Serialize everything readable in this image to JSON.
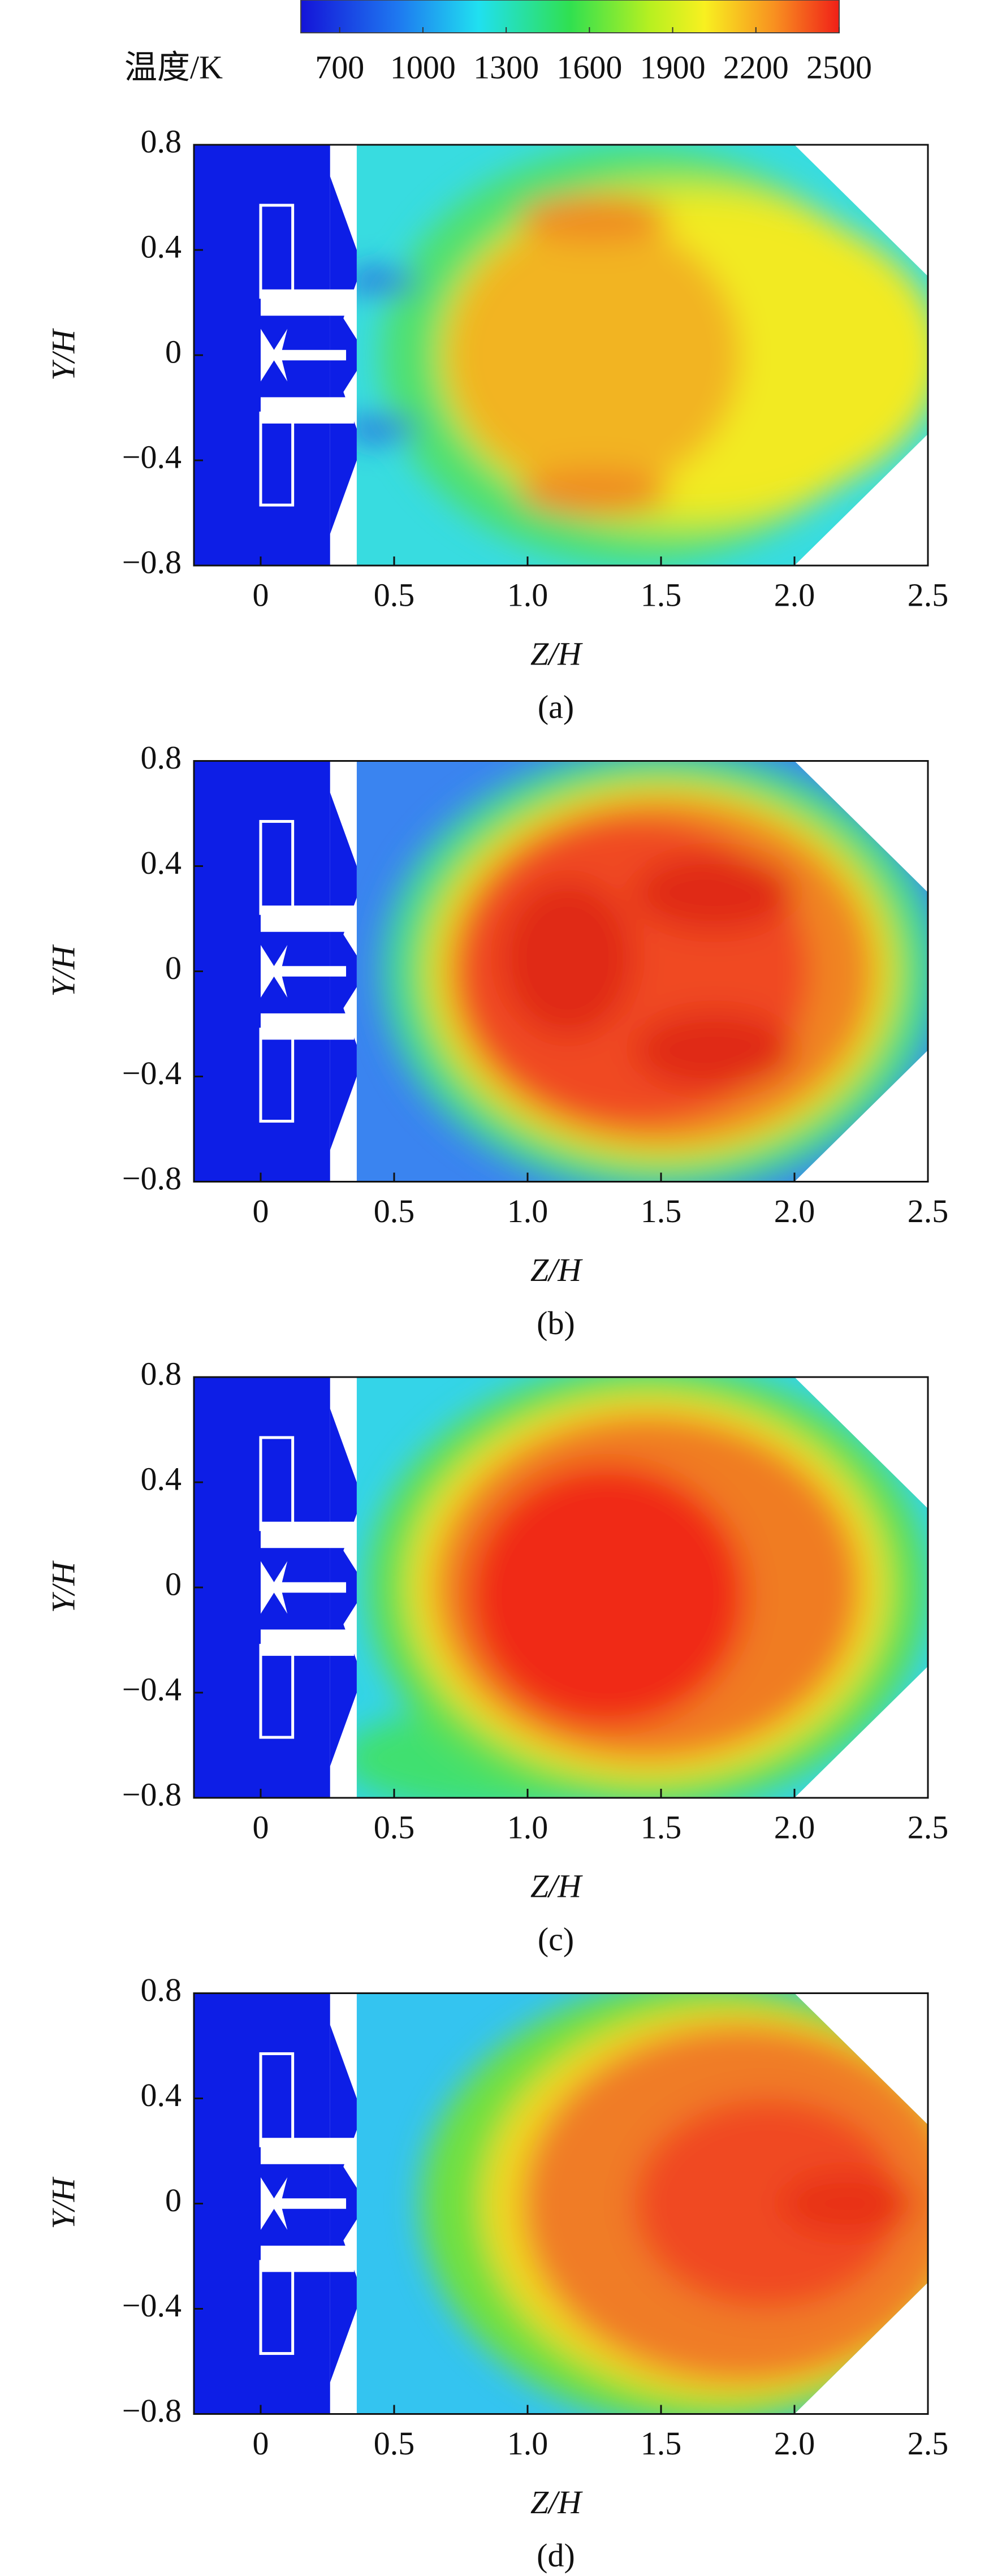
{
  "colorbar": {
    "label": "温度/K",
    "lim": [
      560,
      2500
    ],
    "ticks": [
      700,
      1000,
      1300,
      1600,
      1900,
      2200,
      2500
    ]
  },
  "chart_data": [
    {
      "type": "contour",
      "caption": "(a)",
      "xlabel": "Z/H",
      "ylabel": "Y/H",
      "xlim": [
        -0.25,
        2.5
      ],
      "ylim": [
        -0.8,
        0.8
      ],
      "xticks": [
        0,
        0.5,
        {
          "value": 1,
          "label": "1.0"
        },
        1.5,
        {
          "value": 2,
          "label": "2.0"
        },
        2.5
      ],
      "yticks": [
        {
          "value": -0.8,
          "label": "−0.8"
        },
        {
          "value": -0.4,
          "label": "−0.4"
        },
        0,
        0.4,
        0.8
      ]
    },
    {
      "type": "contour",
      "caption": "(b)",
      "xlabel": "Z/H",
      "ylabel": "Y/H",
      "xlim": [
        -0.25,
        2.5
      ],
      "ylim": [
        -0.8,
        0.8
      ],
      "xticks": [
        0,
        0.5,
        {
          "value": 1,
          "label": "1.0"
        },
        1.5,
        {
          "value": 2,
          "label": "2.0"
        },
        2.5
      ],
      "yticks": [
        {
          "value": -0.8,
          "label": "−0.8"
        },
        {
          "value": -0.4,
          "label": "−0.4"
        },
        0,
        0.4,
        0.8
      ]
    },
    {
      "type": "contour",
      "caption": "(c)",
      "xlabel": "Z/H",
      "ylabel": "Y/H",
      "xlim": [
        -0.25,
        2.5
      ],
      "ylim": [
        -0.8,
        0.8
      ],
      "xticks": [
        0,
        0.5,
        {
          "value": 1,
          "label": "1.0"
        },
        1.5,
        {
          "value": 2,
          "label": "2.0"
        },
        2.5
      ],
      "yticks": [
        {
          "value": -0.8,
          "label": "−0.8"
        },
        {
          "value": -0.4,
          "label": "−0.4"
        },
        0,
        0.4,
        0.8
      ]
    },
    {
      "type": "contour",
      "caption": "(d)",
      "xlabel": "Z/H",
      "ylabel": "Y/H",
      "xlim": [
        -0.25,
        2.5
      ],
      "ylim": [
        -0.8,
        0.8
      ],
      "xticks": [
        0,
        0.5,
        {
          "value": 1,
          "label": "1.0"
        },
        1.5,
        {
          "value": 2,
          "label": "2.0"
        },
        2.5
      ],
      "yticks": [
        {
          "value": -0.8,
          "label": "−0.8"
        },
        {
          "value": -0.4,
          "label": "−0.4"
        },
        0,
        0.4,
        0.8
      ]
    }
  ]
}
